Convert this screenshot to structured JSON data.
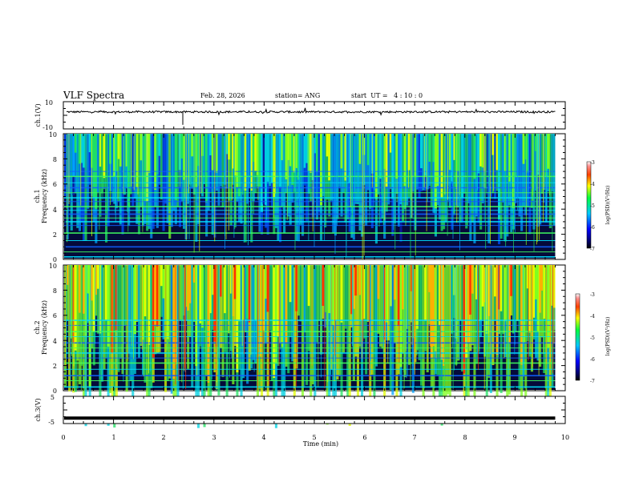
{
  "chart_data": [
    {
      "type": "line",
      "header": {
        "title": "VLF Spectra",
        "date": "Feb. 28, 2026",
        "station": "station= ANG",
        "start_ut": "start  UT =   4 : 10 : 0"
      },
      "ylabel": "ch.1(V)",
      "ylim": [
        -10,
        10
      ],
      "ytick_labels": [
        "10",
        "-10"
      ],
      "description_series": "ch.1 waveform, near-constant ~2.5 V with small noise and a few spikes",
      "level": 2.5
    },
    {
      "type": "heatmap",
      "ylabel": "ch.1\nFrequency (kHz)",
      "ylabel_lines": [
        "ch.1",
        "Frequency (kHz)"
      ],
      "ylim": [
        0,
        10
      ],
      "ytick_labels": [
        "10",
        "8",
        "6",
        "4",
        "2",
        "0"
      ],
      "colorbar": {
        "label": "log(PSD)(V²/Hz)",
        "range": [
          -7,
          -3
        ],
        "tick_labels": [
          "-3",
          "-4",
          "-5",
          "-6",
          "-7"
        ]
      },
      "horizontal_lines_khz": [
        0.2,
        0.6,
        1.0,
        1.5,
        2.1,
        2.7,
        3.0,
        3.3,
        3.6,
        3.9,
        4.2,
        4.6,
        4.9,
        5.3,
        5.7,
        6.1,
        6.6,
        7.0
      ]
    },
    {
      "type": "heatmap",
      "ylabel": "ch.2\nFrequency (kHz)",
      "ylabel_lines": [
        "ch.2",
        "Frequency (kHz)"
      ],
      "ylim": [
        0,
        10
      ],
      "ytick_labels": [
        "10",
        "8",
        "6",
        "4",
        "2",
        "0"
      ],
      "colorbar": {
        "label": "log(PSD)(V²/Hz)",
        "range": [
          -7,
          -3
        ],
        "tick_labels": [
          "-3",
          "-4",
          "-5",
          "-6",
          "-7"
        ]
      },
      "horizontal_lines_khz": [
        0.3,
        0.8,
        1.2,
        1.7,
        2.2,
        2.6,
        3.0,
        3.4,
        3.8,
        4.3,
        4.7,
        5.2,
        5.6
      ]
    },
    {
      "type": "line",
      "ylabel": "ch.3(V)",
      "ylim": [
        -5,
        5
      ],
      "ytick_labels": [
        "5",
        "-5"
      ],
      "level": -3.0,
      "xlabel": "Time (min)",
      "xlim": [
        0,
        10
      ],
      "xtick_labels": [
        "0",
        "1",
        "2",
        "3",
        "4",
        "5",
        "6",
        "7",
        "8",
        "9",
        "10"
      ],
      "data_end_min": 9.8
    }
  ]
}
